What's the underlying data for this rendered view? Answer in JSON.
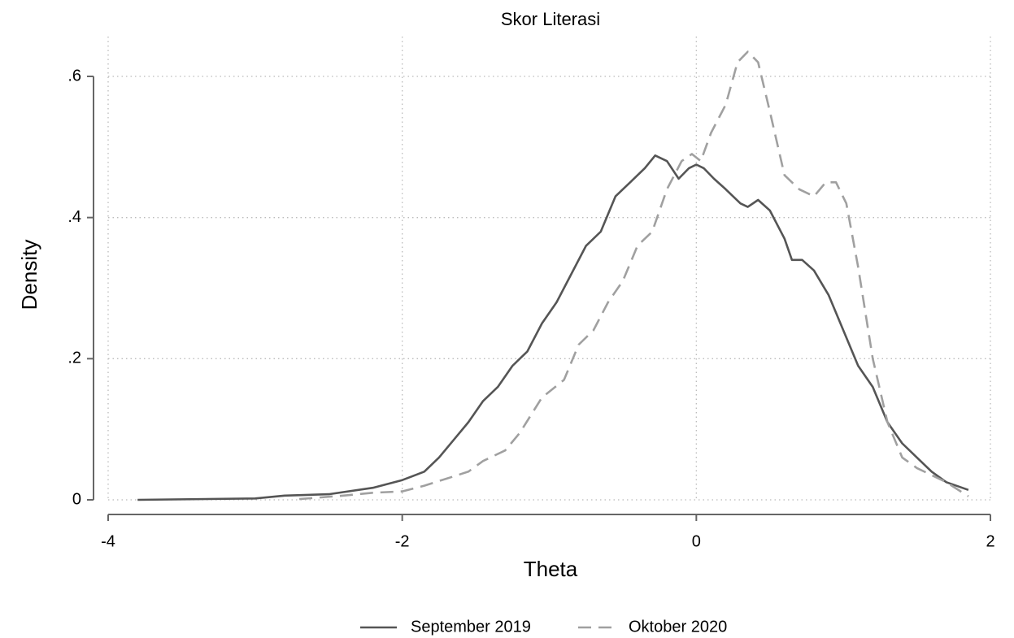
{
  "chart_data": {
    "type": "line",
    "title": "Skor Literasi",
    "x_label": "Theta",
    "y_label": "Density",
    "xlim": [
      -4,
      2
    ],
    "ylim": [
      0,
      0.6
    ],
    "xticks": [
      -4,
      -2,
      0,
      2
    ],
    "yticks": [
      {
        "value": 0,
        "label": "0"
      },
      {
        "value": 0.2,
        "label": ".2"
      },
      {
        "value": 0.4,
        "label": ".4"
      },
      {
        "value": 0.6,
        "label": ".6"
      }
    ],
    "grid": true,
    "legend": "bottom",
    "series": [
      {
        "name": "September 2019",
        "color": "#555555",
        "dash": "solid",
        "x": [
          -3.8,
          -3.0,
          -2.8,
          -2.5,
          -2.2,
          -2.0,
          -1.85,
          -1.75,
          -1.65,
          -1.55,
          -1.45,
          -1.35,
          -1.25,
          -1.15,
          -1.05,
          -0.95,
          -0.85,
          -0.75,
          -0.65,
          -0.55,
          -0.45,
          -0.35,
          -0.28,
          -0.2,
          -0.12,
          -0.05,
          0.0,
          0.05,
          0.12,
          0.2,
          0.3,
          0.35,
          0.42,
          0.5,
          0.6,
          0.65,
          0.72,
          0.8,
          0.9,
          1.0,
          1.1,
          1.2,
          1.3,
          1.4,
          1.5,
          1.6,
          1.7,
          1.85
        ],
        "values": [
          0,
          0.002,
          0.006,
          0.008,
          0.017,
          0.028,
          0.04,
          0.06,
          0.085,
          0.11,
          0.14,
          0.16,
          0.19,
          0.21,
          0.25,
          0.28,
          0.32,
          0.36,
          0.38,
          0.43,
          0.45,
          0.47,
          0.488,
          0.48,
          0.455,
          0.47,
          0.475,
          0.47,
          0.455,
          0.44,
          0.42,
          0.415,
          0.425,
          0.41,
          0.37,
          0.34,
          0.34,
          0.325,
          0.29,
          0.24,
          0.19,
          0.16,
          0.11,
          0.08,
          0.06,
          0.04,
          0.025,
          0.014
        ]
      },
      {
        "name": "Oktober 2020",
        "color": "#a0a0a0",
        "dash": "dashed",
        "x": [
          -2.7,
          -2.4,
          -2.2,
          -2.0,
          -1.85,
          -1.7,
          -1.55,
          -1.45,
          -1.3,
          -1.2,
          -1.05,
          -0.9,
          -0.8,
          -0.7,
          -0.6,
          -0.5,
          -0.4,
          -0.3,
          -0.2,
          -0.1,
          -0.03,
          0.03,
          0.1,
          0.2,
          0.28,
          0.35,
          0.42,
          0.5,
          0.6,
          0.7,
          0.8,
          0.88,
          0.95,
          1.02,
          1.1,
          1.2,
          1.3,
          1.4,
          1.5,
          1.6,
          1.7,
          1.85
        ],
        "values": [
          0.001,
          0.006,
          0.01,
          0.012,
          0.02,
          0.03,
          0.04,
          0.055,
          0.07,
          0.095,
          0.145,
          0.17,
          0.22,
          0.24,
          0.28,
          0.31,
          0.36,
          0.38,
          0.44,
          0.48,
          0.49,
          0.48,
          0.52,
          0.56,
          0.62,
          0.635,
          0.62,
          0.55,
          0.46,
          0.44,
          0.43,
          0.45,
          0.45,
          0.42,
          0.33,
          0.2,
          0.11,
          0.06,
          0.045,
          0.035,
          0.025,
          0.005
        ]
      }
    ]
  }
}
